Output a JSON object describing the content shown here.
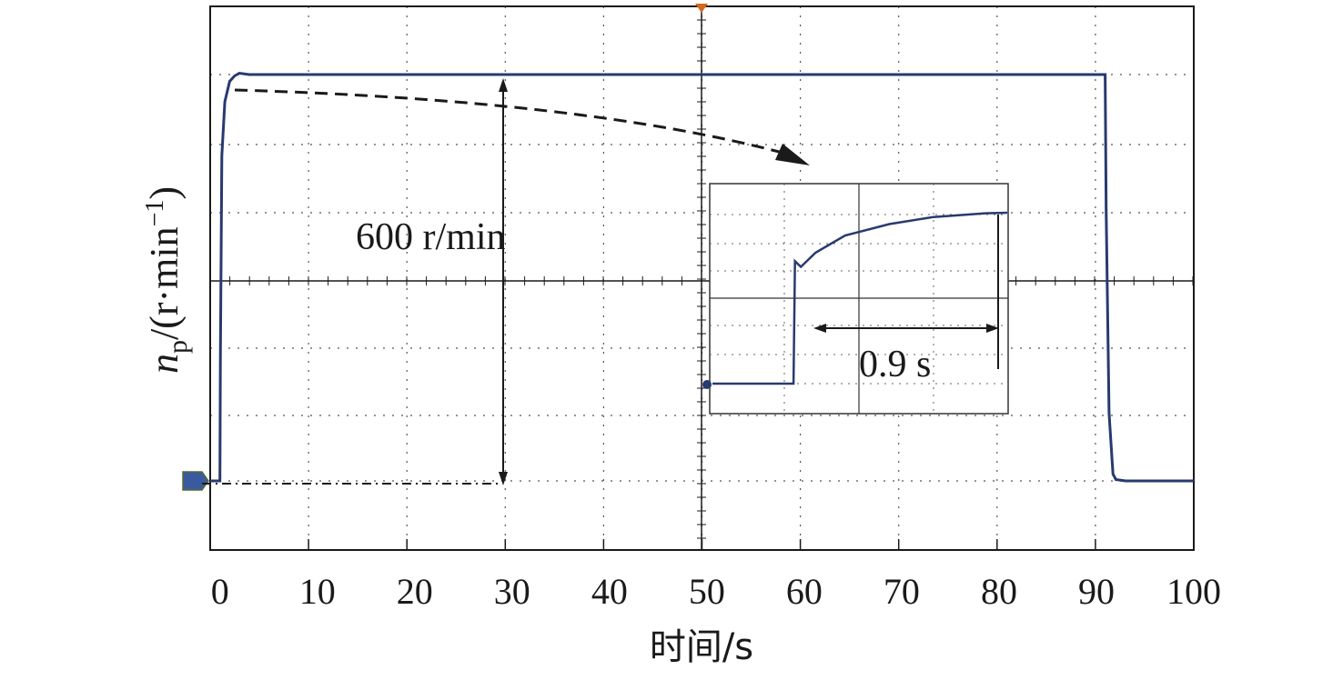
{
  "chart_data": {
    "type": "line",
    "xlabel": "时间/s",
    "ylabel": {
      "symbol": "n",
      "subscript": "p",
      "unit_open": "/(r·min",
      "unit_exp": "−1",
      "unit_close": ")"
    },
    "x_ticks": [
      "0",
      "10",
      "20",
      "30",
      "40",
      "50",
      "60",
      "70",
      "80",
      "90",
      "100"
    ],
    "xlim": [
      -1,
      100
    ],
    "grid": true,
    "series": [
      {
        "x": [
          -1,
          0,
          0.05,
          0.2,
          0.5,
          1,
          1.5,
          2,
          3,
          10,
          20,
          30,
          40,
          50,
          60,
          70,
          80,
          90,
          90.9,
          91.0,
          91.3,
          91.7,
          92,
          93,
          100
        ],
        "y": [
          0,
          0,
          180,
          480,
          560,
          590,
          598,
          602,
          600,
          600,
          600,
          600,
          600,
          600,
          600,
          600,
          600,
          600,
          600,
          400,
          100,
          10,
          2,
          0,
          0
        ],
        "color": "#283a6e"
      }
    ],
    "annotations": {
      "amplitude": "600 r/min",
      "settling": "0.9 s"
    },
    "inset": {
      "description_visible": true,
      "x": [
        0,
        0.55,
        0.56,
        0.6,
        0.7,
        0.9,
        1.2,
        1.5,
        1.85,
        2.0
      ],
      "y": [
        0,
        0,
        430,
        410,
        460,
        520,
        560,
        585,
        598,
        600
      ]
    }
  }
}
